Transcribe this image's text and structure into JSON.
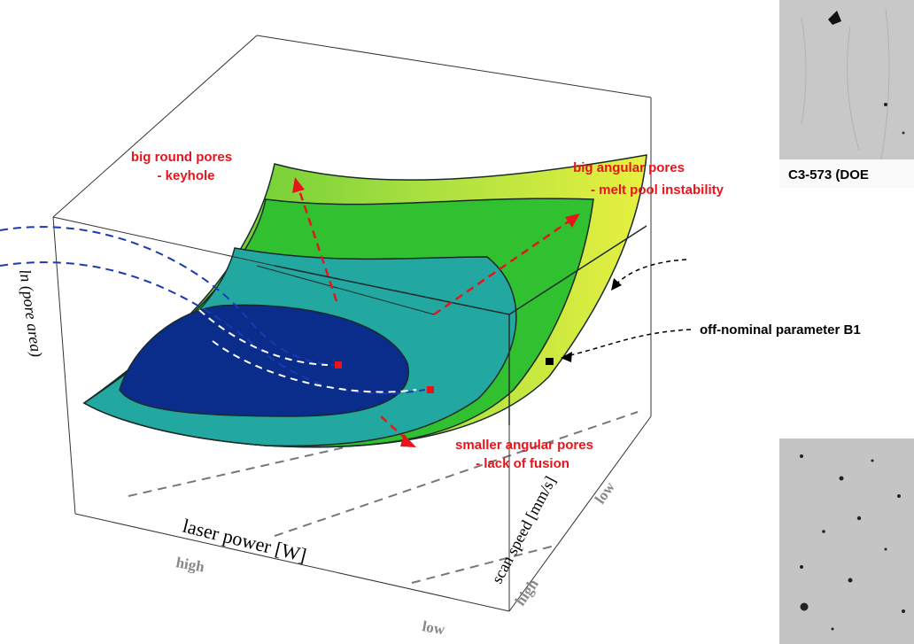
{
  "annotations": [
    {
      "lines": [
        "big round pores",
        "- keyhole"
      ]
    },
    {
      "lines": [
        "big angular pores",
        "- melt pool instability"
      ]
    },
    {
      "lines": [
        "smaller angular pores",
        "- lack of fusion"
      ]
    }
  ],
  "off_nominal": "off-nominal parameter B1",
  "micrograph_top": {
    "caption": "C3-573 (DOE"
  },
  "axes": {
    "z_label": "ln (pore area)",
    "x_label": "laser power [W]",
    "x_high": "high",
    "x_low": "low",
    "y_label": "scan speed [mm/s]",
    "y_low": "low",
    "y_high": "high"
  }
}
